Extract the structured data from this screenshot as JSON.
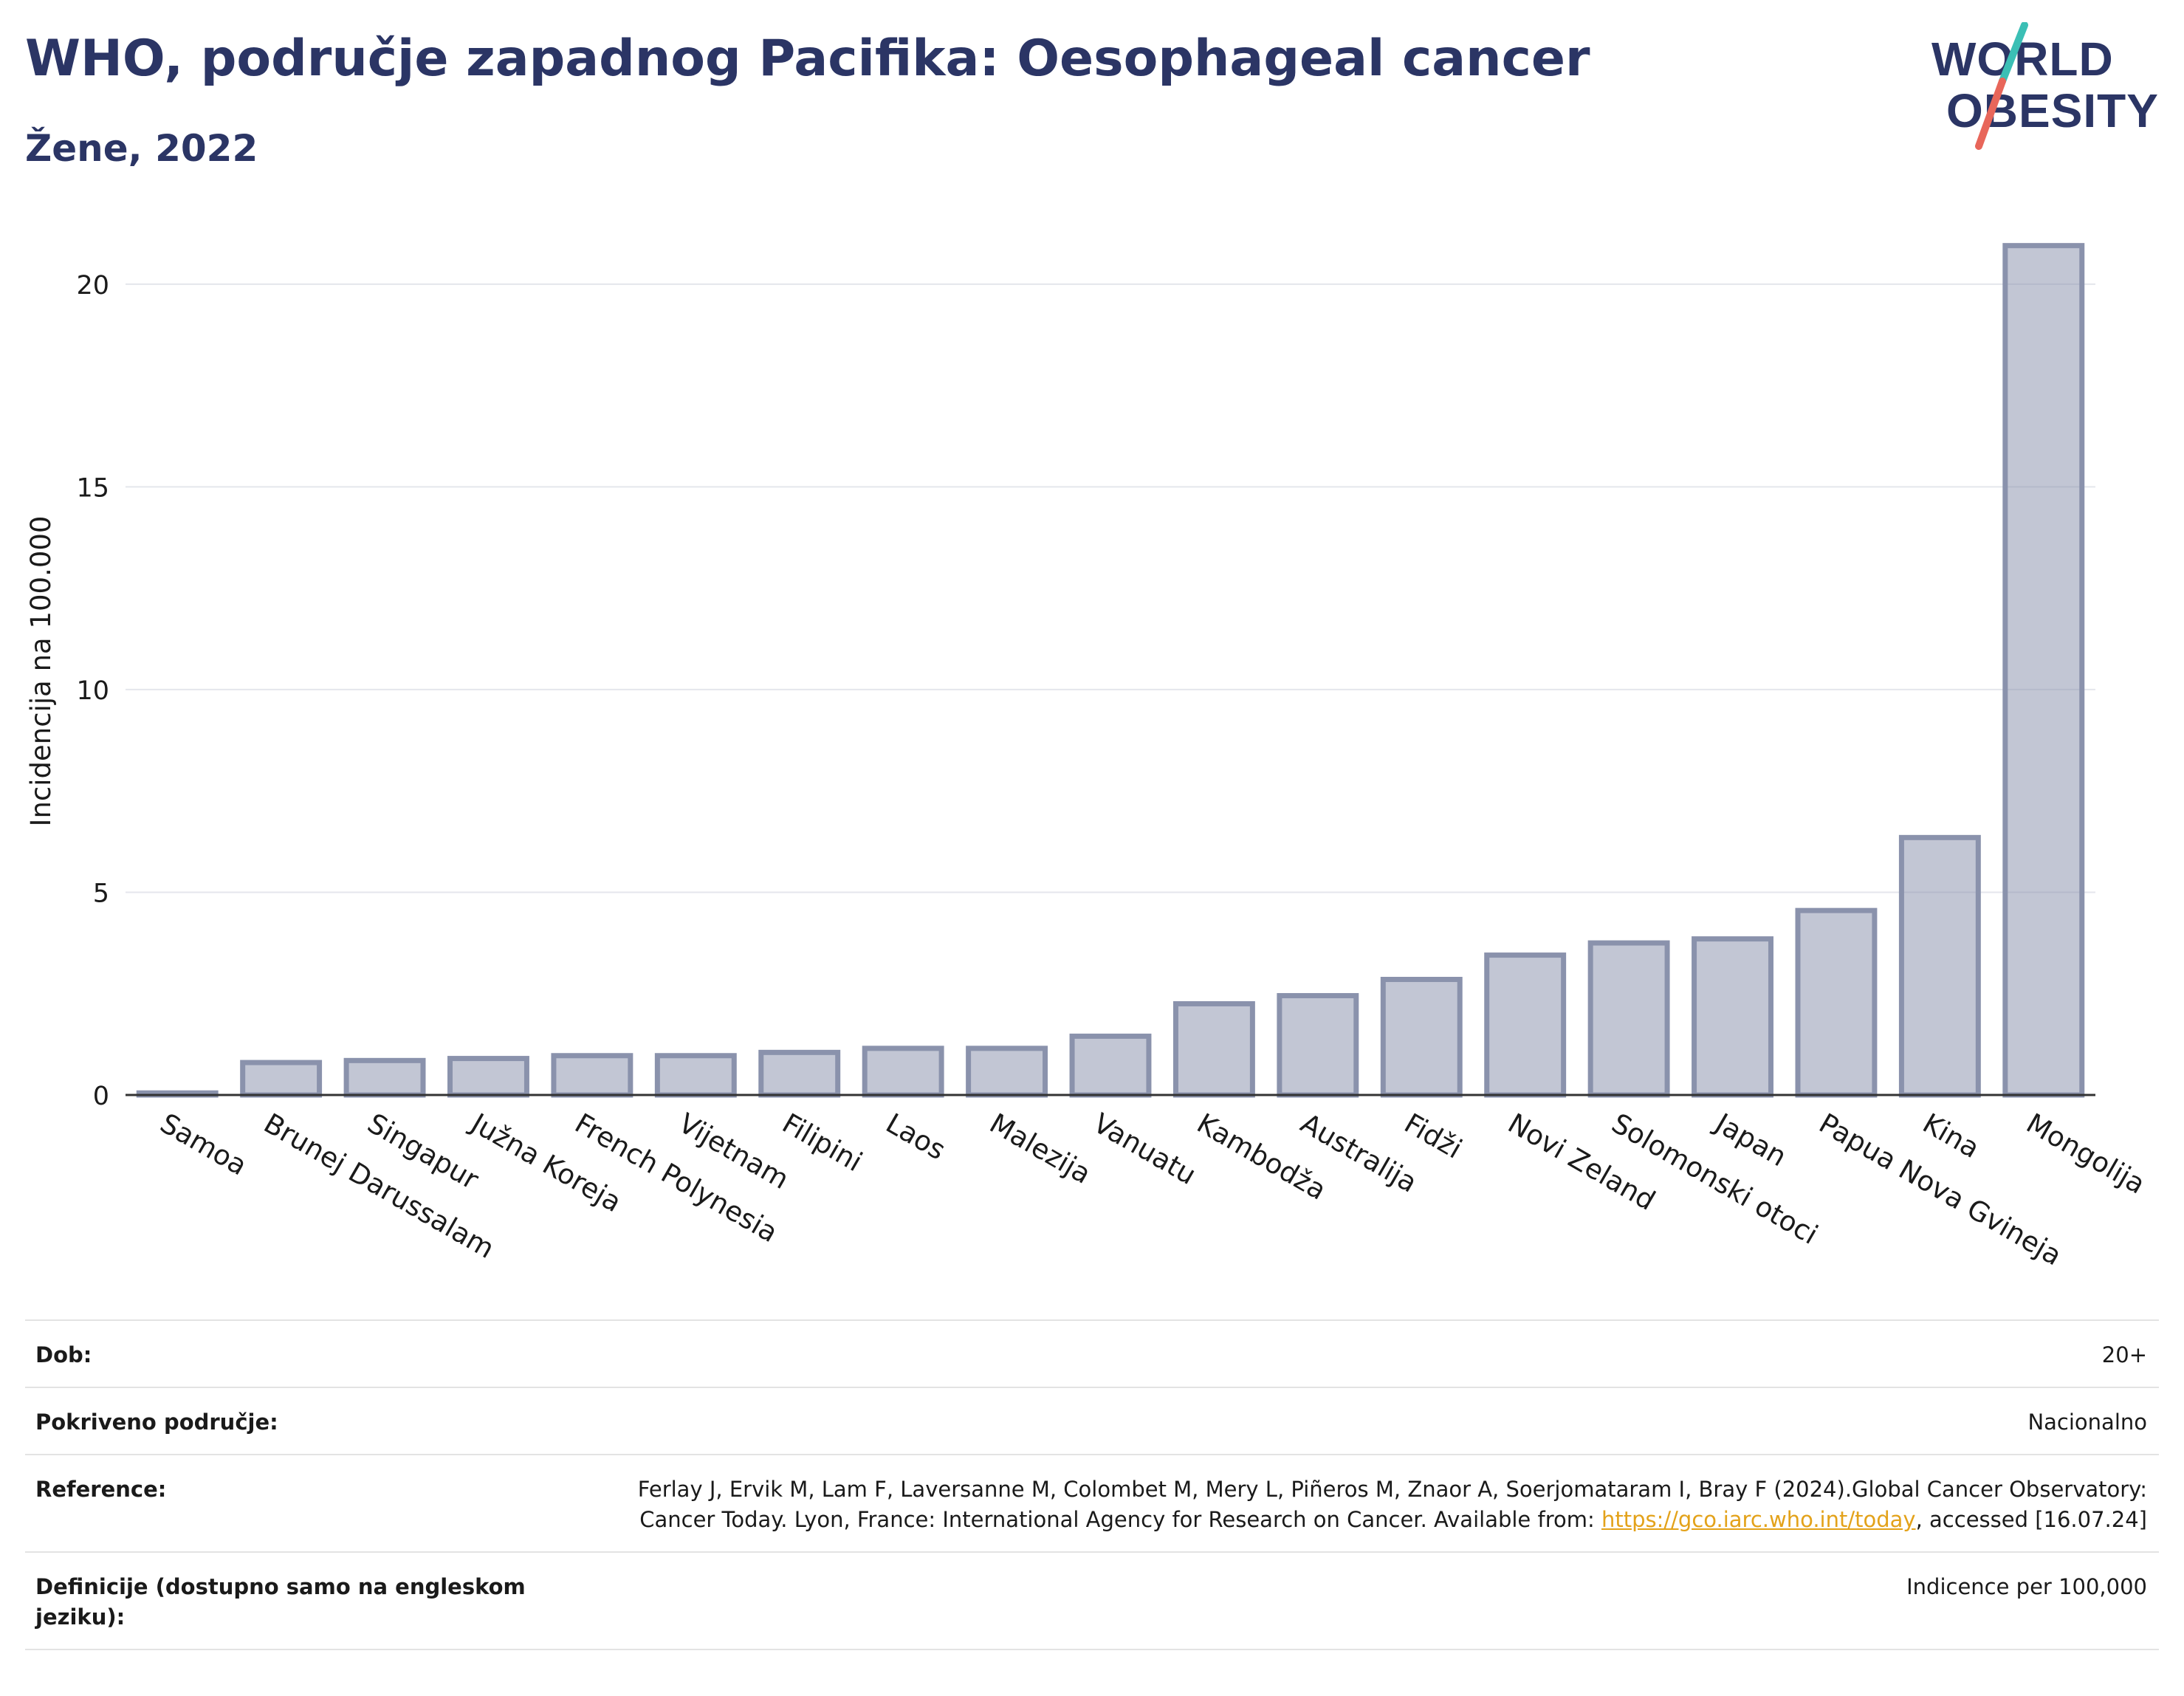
{
  "header": {
    "title": "WHO, područje zapadnog Pacifika: Oesophageal cancer",
    "subtitle": "Žene, 2022"
  },
  "logo": {
    "line1": "WORLD",
    "line2": "OBESITY",
    "colors": {
      "text": "#2b3565",
      "slash_top": "#3bbfb5",
      "slash_bottom": "#e8665a"
    }
  },
  "chart_data": {
    "type": "bar",
    "title": "",
    "xlabel": "",
    "ylabel": "Incidencija na 100.000",
    "ylim": [
      0,
      22
    ],
    "yticks": [
      0,
      5,
      10,
      15,
      20
    ],
    "grid": true,
    "legend": "none",
    "bar_color": "#8a92ac",
    "categories": [
      "Samoa",
      "Brunej Darussalam",
      "Singapur",
      "Južna Koreja",
      "French Polynesia",
      "Vijetnam",
      "Filipini",
      "Laos",
      "Malezija",
      "Vanuatu",
      "Kambodža",
      "Australija",
      "Fidži",
      "Novi Zeland",
      "Solomonski otoci",
      "Japan",
      "Papua Nova Gvineja",
      "Kina",
      "Mongolija"
    ],
    "values": [
      0.05,
      0.8,
      0.85,
      0.9,
      0.97,
      0.97,
      1.05,
      1.15,
      1.15,
      1.45,
      2.25,
      2.45,
      2.85,
      3.45,
      3.75,
      3.85,
      4.55,
      6.35,
      20.95
    ]
  },
  "info": [
    {
      "label": "Dob:",
      "value": "20+"
    },
    {
      "label": "Pokriveno područje:",
      "value": "Nacionalno"
    },
    {
      "label": "Reference:",
      "value_before": "Ferlay J, Ervik M, Lam F, Laversanne M, Colombet M, Mery L, Piñeros M, Znaor A, Soerjomataram I, Bray F (2024).Global Cancer Observatory: Cancer Today. Lyon, France: International Agency for Research on Cancer. Available from: ",
      "link": "https://gco.iarc.who.int/today",
      "value_after": ", accessed [16.07.24]"
    },
    {
      "label": "Definicije (dostupno samo na engleskom jeziku):",
      "value": "Indicence per 100,000"
    }
  ]
}
